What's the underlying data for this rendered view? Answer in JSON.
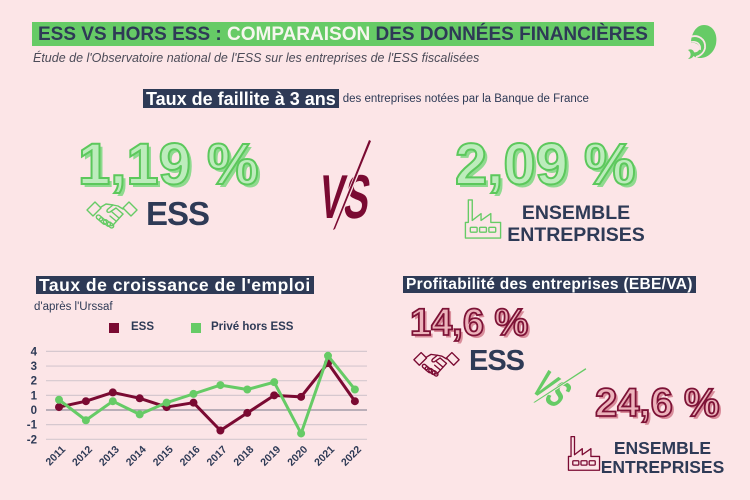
{
  "header": {
    "title_part1": "ESS VS HORS ESS : ",
    "title_highlight": "COMPARAISON",
    "title_part2": " DES DONNÉES FINANCIÈRES",
    "subtitle": "Étude de l'Observatoire national de l'ESS sur les entreprises de l'ESS fiscalisées",
    "logo_icon": "green-swirl-logo"
  },
  "colors": {
    "background": "#fce5e7",
    "green": "#66cb66",
    "navy": "#2e3a56",
    "maroon": "#7a0a32"
  },
  "failure_rate": {
    "label": "Taux de faillite à 3 ans",
    "label_suffix": "des entreprises notées par la Banque de France",
    "ess": {
      "value": "1,19 %",
      "label": "ESS",
      "icon": "handshake-icon"
    },
    "vs": "VS",
    "all": {
      "value": "2,09 %",
      "label_line1": "ENSEMBLE",
      "label_line2": "ENTREPRISES",
      "icon": "factory-icon"
    }
  },
  "employment_growth": {
    "title": "Taux de croissance de  l'emploi",
    "source": "d'après l'Urssaf",
    "legend": [
      {
        "label": "ESS",
        "color": "#7a0a32"
      },
      {
        "label": "Privé hors ESS",
        "color": "#66cb66"
      }
    ]
  },
  "profitability": {
    "title": "Profitabilité des entreprises (EBE/VA)",
    "ess": {
      "value": "14,6 %",
      "label": "ESS",
      "icon": "handshake-icon"
    },
    "vs": "VS",
    "all": {
      "value": "24,6 %",
      "label_line1": "ENSEMBLE",
      "label_line2": "ENTREPRISES",
      "icon": "factory-icon"
    }
  },
  "chart_data": {
    "type": "line",
    "title": "Taux de croissance de l'emploi",
    "subtitle": "d'après l'Urssaf",
    "xlabel": "",
    "ylabel": "",
    "categories": [
      "2011",
      "2012",
      "2013",
      "2014",
      "2015",
      "2016",
      "2017",
      "2018",
      "2019",
      "2020",
      "2021",
      "2022"
    ],
    "series": [
      {
        "name": "ESS",
        "color": "#7a0a32",
        "values": [
          0.2,
          0.6,
          1.2,
          0.8,
          0.2,
          0.5,
          -1.4,
          -0.2,
          1.0,
          0.9,
          3.2,
          0.6
        ]
      },
      {
        "name": "Privé hors ESS",
        "color": "#66cb66",
        "values": [
          0.7,
          -0.7,
          0.6,
          -0.3,
          0.5,
          1.1,
          1.7,
          1.4,
          1.9,
          -1.6,
          3.7,
          1.4
        ]
      }
    ],
    "yticks": [
      4,
      3,
      2,
      1,
      0,
      -1,
      -2
    ],
    "ylim": [
      -2,
      4
    ],
    "grid": true,
    "legend_position": "top"
  }
}
